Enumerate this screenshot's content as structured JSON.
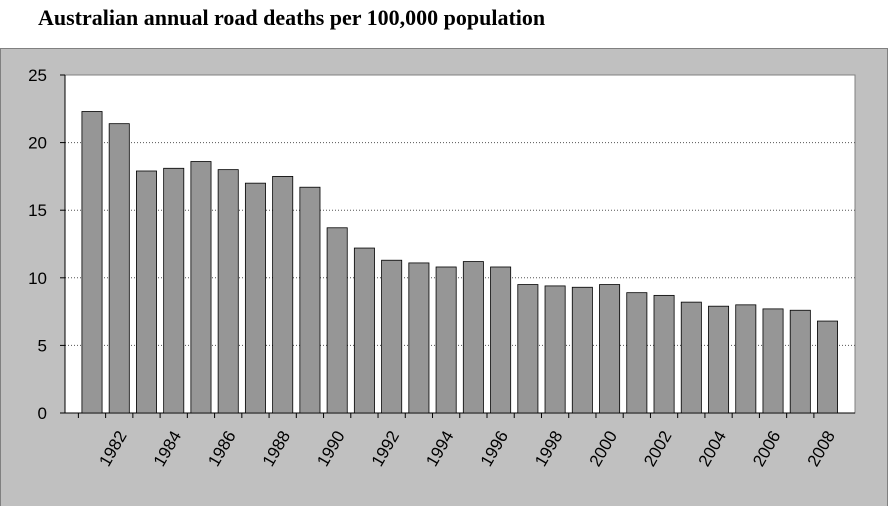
{
  "chart_data": {
    "type": "bar",
    "title": "Australian annual road deaths per 100,000 population",
    "categories": [
      null,
      "1982",
      null,
      "1984",
      null,
      "1986",
      null,
      "1988",
      null,
      "1990",
      null,
      "1992",
      null,
      "1994",
      null,
      "1996",
      null,
      "1998",
      null,
      "2000",
      null,
      "2002",
      null,
      "2004",
      null,
      "2006",
      null,
      "2008"
    ],
    "values": [
      22.3,
      21.4,
      17.9,
      18.1,
      18.6,
      18.0,
      17.0,
      17.5,
      16.7,
      13.7,
      12.2,
      11.3,
      11.1,
      10.8,
      11.2,
      10.8,
      9.5,
      9.4,
      9.3,
      9.5,
      8.9,
      8.7,
      8.2,
      7.9,
      8.0,
      7.7,
      7.6,
      6.8
    ],
    "color": "#969696",
    "ylim": [
      0,
      25
    ],
    "yticks": [
      0,
      5,
      10,
      15,
      20,
      25
    ],
    "grid": true
  }
}
